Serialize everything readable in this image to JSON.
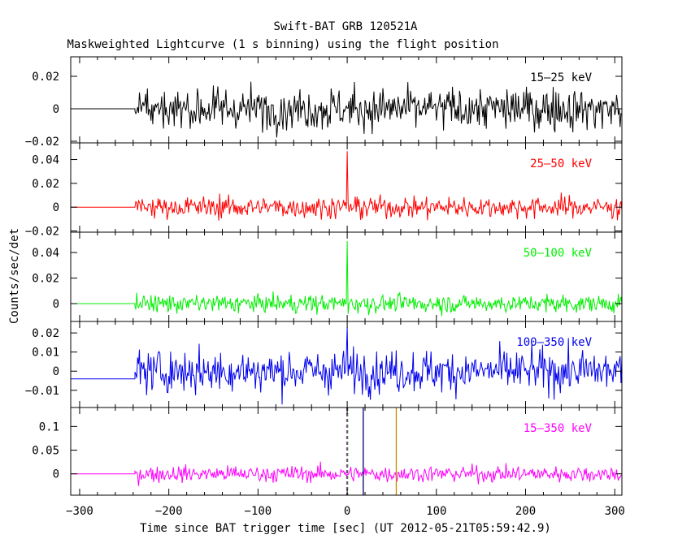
{
  "chart_data": {
    "type": "line",
    "title": "Swift-BAT GRB 120521A",
    "subtitle": "Maskweighted Lightcurve (1 s binning) using the flight position",
    "xlabel": "Time since BAT trigger time [sec] (UT 2012-05-21T05:59:42.9)",
    "ylabel": "Counts/sec/det",
    "xlim": [
      -310,
      308
    ],
    "x_ticks": [
      -300,
      -200,
      -100,
      0,
      100,
      200,
      300
    ],
    "data_start": -238,
    "burst_time": 0,
    "panels": [
      {
        "name": "15–25 keV",
        "color": "#000000",
        "ylim": [
          -0.021,
          0.032
        ],
        "y_ticks": [
          -0.02,
          0,
          0.02
        ],
        "y_tick_labels": [
          "−0.02",
          "0",
          "0.02"
        ],
        "pre_level": 0.0,
        "noise_std": 0.0065,
        "spike": 0.0
      },
      {
        "name": "25–50 keV",
        "color": "#ff0000",
        "ylim": [
          -0.021,
          0.054
        ],
        "y_ticks": [
          -0.02,
          0,
          0.02,
          0.04
        ],
        "y_tick_labels": [
          "−0.02",
          "0",
          "0.02",
          "0.04"
        ],
        "pre_level": 0.0,
        "noise_std": 0.0045,
        "spike": 0.047
      },
      {
        "name": "50–100 keV",
        "color": "#00ee00",
        "ylim": [
          -0.014,
          0.056
        ],
        "y_ticks": [
          0,
          0.02,
          0.04
        ],
        "y_tick_labels": [
          "0",
          "0.02",
          "0.04"
        ],
        "pre_level": 0.0,
        "noise_std": 0.0035,
        "spike": 0.049
      },
      {
        "name": "100–350 keV",
        "color": "#0000ee",
        "ylim": [
          -0.019,
          0.026
        ],
        "y_ticks": [
          -0.01,
          0,
          0.01,
          0.02
        ],
        "y_tick_labels": [
          "−0.01",
          "0",
          "0.01",
          "0.02"
        ],
        "pre_level": -0.004,
        "noise_std": 0.0055,
        "spike": 0.023
      },
      {
        "name": "15–350 keV",
        "color": "#ff00ff",
        "ylim": [
          -0.045,
          0.14
        ],
        "y_ticks": [
          0,
          0.05,
          0.1
        ],
        "y_tick_labels": [
          "0",
          "0.05",
          "0.1"
        ],
        "pre_level": 0.0,
        "noise_std": 0.0085,
        "spike": 0.0,
        "vertical_lines": [
          {
            "x": -0.5,
            "color": "#ff00ff",
            "style": "dashed"
          },
          {
            "x": 0.5,
            "color": "#00aa00",
            "style": "dashed"
          },
          {
            "x": 18,
            "color": "#000066",
            "style": "solid"
          },
          {
            "x": 55,
            "color": "#cc8800",
            "style": "solid"
          }
        ]
      }
    ]
  }
}
